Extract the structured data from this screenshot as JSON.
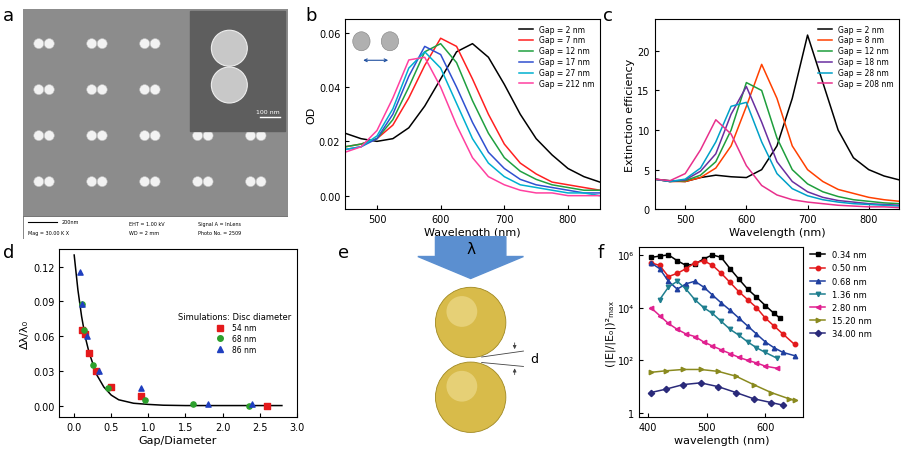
{
  "chart_data": [
    {
      "panel": "b",
      "type": "line",
      "x_label": "Wavelength (nm)",
      "y_label": "OD",
      "x": [
        450,
        475,
        500,
        525,
        550,
        575,
        600,
        625,
        650,
        675,
        700,
        725,
        750,
        775,
        800,
        825,
        850
      ],
      "series": [
        {
          "name": "Gap = 2 nm",
          "color": "#000000",
          "values": [
            0.023,
            0.021,
            0.02,
            0.021,
            0.025,
            0.033,
            0.043,
            0.053,
            0.056,
            0.051,
            0.041,
            0.03,
            0.021,
            0.015,
            0.01,
            0.007,
            0.005
          ]
        },
        {
          "name": "Gap = 7 nm",
          "color": "#ff2020",
          "values": [
            0.018,
            0.019,
            0.021,
            0.026,
            0.036,
            0.048,
            0.058,
            0.055,
            0.043,
            0.03,
            0.019,
            0.012,
            0.008,
            0.005,
            0.004,
            0.003,
            0.002
          ]
        },
        {
          "name": "Gap = 12 nm",
          "color": "#20a040",
          "values": [
            0.018,
            0.019,
            0.021,
            0.028,
            0.04,
            0.053,
            0.056,
            0.049,
            0.035,
            0.023,
            0.014,
            0.009,
            0.006,
            0.004,
            0.003,
            0.002,
            0.002
          ]
        },
        {
          "name": "Gap = 17 nm",
          "color": "#3050d0",
          "values": [
            0.017,
            0.018,
            0.021,
            0.03,
            0.044,
            0.055,
            0.052,
            0.04,
            0.027,
            0.016,
            0.01,
            0.006,
            0.004,
            0.003,
            0.002,
            0.001,
            0.001
          ]
        },
        {
          "name": "Gap = 27 nm",
          "color": "#00b0d0",
          "values": [
            0.017,
            0.018,
            0.022,
            0.032,
            0.047,
            0.053,
            0.047,
            0.034,
            0.021,
            0.012,
            0.007,
            0.004,
            0.003,
            0.002,
            0.001,
            0.001,
            0.0
          ]
        },
        {
          "name": "Gap = 212 nm",
          "color": "#ff40a0",
          "values": [
            0.016,
            0.018,
            0.024,
            0.036,
            0.05,
            0.051,
            0.04,
            0.026,
            0.014,
            0.007,
            0.004,
            0.002,
            0.001,
            0.001,
            0.0,
            0.0,
            0.0
          ]
        }
      ],
      "xlim": [
        450,
        850
      ],
      "xticks": [
        500,
        600,
        700,
        800
      ],
      "ylim": [
        -0.005,
        0.065
      ],
      "yticks": [
        {
          "value": 0,
          "label": "0.00"
        },
        0.02,
        0.04,
        0.06
      ],
      "legend": "upper right"
    },
    {
      "panel": "c",
      "type": "line",
      "x_label": "Wavelength (nm)",
      "y_label": "Extinction efficiency",
      "x": [
        450,
        475,
        500,
        525,
        550,
        575,
        600,
        625,
        650,
        675,
        700,
        725,
        750,
        775,
        800,
        825,
        850
      ],
      "series": [
        {
          "name": "Gap = 2 nm",
          "color": "#000000",
          "values": [
            3.8,
            3.6,
            3.5,
            4.0,
            4.3,
            4.1,
            4.0,
            5.0,
            8.0,
            14.0,
            22.0,
            16.0,
            10.0,
            6.5,
            5.0,
            4.2,
            3.7
          ]
        },
        {
          "name": "Gap = 8 nm",
          "color": "#ff4000",
          "values": [
            3.8,
            3.5,
            3.5,
            4.0,
            5.2,
            8.0,
            13.0,
            18.3,
            14.0,
            8.0,
            5.0,
            3.5,
            2.5,
            2.0,
            1.5,
            1.2,
            1.0
          ]
        },
        {
          "name": "Gap = 12 nm",
          "color": "#1e9e3c",
          "values": [
            3.8,
            3.5,
            3.6,
            4.3,
            6.0,
            10.0,
            16.0,
            15.0,
            9.0,
            5.0,
            3.2,
            2.2,
            1.6,
            1.2,
            1.0,
            0.8,
            0.7
          ]
        },
        {
          "name": "Gap = 18 nm",
          "color": "#6a2fa0",
          "values": [
            3.8,
            3.5,
            3.7,
            4.8,
            7.0,
            12.0,
            15.5,
            11.0,
            6.0,
            3.5,
            2.2,
            1.5,
            1.1,
            0.9,
            0.7,
            0.6,
            0.5
          ]
        },
        {
          "name": "Gap = 28 nm",
          "color": "#00a0c8",
          "values": [
            3.8,
            3.5,
            3.8,
            5.2,
            8.5,
            13.0,
            13.5,
            8.5,
            4.5,
            2.6,
            1.7,
            1.2,
            0.9,
            0.7,
            0.6,
            0.5,
            0.4
          ]
        },
        {
          "name": "Gap = 208 nm",
          "color": "#e8308c",
          "values": [
            3.8,
            3.6,
            4.5,
            7.5,
            11.3,
            9.5,
            5.5,
            3.0,
            1.8,
            1.2,
            0.9,
            0.7,
            0.5,
            0.4,
            0.3,
            0.3,
            0.2
          ]
        }
      ],
      "xlim": [
        450,
        850
      ],
      "xticks": [
        500,
        600,
        700,
        800
      ],
      "ylim": [
        0,
        24
      ],
      "yticks": [
        0,
        5,
        10,
        15,
        20
      ],
      "legend": "upper right"
    },
    {
      "panel": "d",
      "type": "scatter",
      "x_label": "Gap/Diameter",
      "y_label": "Δλ/λ₀",
      "legend_title": "Simulations: Disc diameter",
      "series": [
        {
          "name": "54 nm",
          "color": "#e41a1c",
          "marker": "square",
          "x": [
            0.1,
            0.15,
            0.2,
            0.3,
            0.5,
            0.9,
            2.6
          ],
          "values": [
            0.065,
            0.062,
            0.045,
            0.03,
            0.016,
            0.008,
            0.0
          ]
        },
        {
          "name": "68 nm",
          "color": "#2ca02c",
          "marker": "circle",
          "x": [
            0.1,
            0.13,
            0.25,
            0.45,
            0.95,
            1.6,
            2.35
          ],
          "values": [
            0.088,
            0.065,
            0.035,
            0.015,
            0.005,
            0.001,
            0.0
          ]
        },
        {
          "name": "86 nm",
          "color": "#1f3fbf",
          "marker": "triangle_up",
          "x": [
            0.08,
            0.11,
            0.17,
            0.33,
            0.9,
            1.8,
            2.4
          ],
          "values": [
            0.115,
            0.088,
            0.06,
            0.03,
            0.015,
            0.001,
            0.001
          ]
        },
        {
          "type": "line",
          "color": "#000000",
          "line_style": "solid",
          "x": [
            0.0,
            0.05,
            0.1,
            0.15,
            0.2,
            0.3,
            0.4,
            0.5,
            0.6,
            0.8,
            1.0,
            1.2,
            1.5,
            2.0,
            2.5,
            2.8
          ],
          "values": [
            0.13,
            0.1,
            0.077,
            0.059,
            0.046,
            0.027,
            0.016,
            0.009,
            0.005,
            0.002,
            0.001,
            0.0003,
            0,
            0,
            0,
            0
          ]
        }
      ],
      "xlim": [
        -0.2,
        3.0
      ],
      "xticks": [
        {
          "value": 0,
          "label": "0.0"
        },
        0.5,
        {
          "value": 1,
          "label": "1.0"
        },
        1.5,
        {
          "value": 2,
          "label": "2.0"
        },
        2.5,
        {
          "value": 3,
          "label": "3.0"
        }
      ],
      "ylim": [
        -0.01,
        0.135
      ],
      "yticks": [
        {
          "value": 0,
          "label": "0.00"
        },
        0.03,
        0.06,
        0.09,
        0.12
      ],
      "legend": "center right"
    },
    {
      "panel": "f",
      "type": "line",
      "x_label": "wavelength (nm)",
      "y_label": "(|E|/|Eₒ|)²ₘₐₓ",
      "log": "y",
      "series": [
        {
          "name": "0.34 nm",
          "color": "#000000",
          "marker": "square",
          "line_style": "solid",
          "x": [
            405,
            420,
            435,
            450,
            465,
            480,
            495,
            510,
            525,
            540,
            555,
            570,
            585,
            600,
            615,
            625
          ],
          "values": [
            800000,
            900000,
            1000000,
            600000,
            400000,
            450000,
            700000,
            1000000,
            800000,
            300000,
            120000,
            50000,
            25000,
            12000,
            6000,
            4000
          ]
        },
        {
          "name": "0.50 nm",
          "color": "#e31a1c",
          "marker": "circle",
          "line_style": "solid",
          "x": [
            405,
            420,
            435,
            450,
            465,
            480,
            495,
            510,
            525,
            540,
            555,
            570,
            585,
            600,
            615,
            630,
            650
          ],
          "values": [
            500000,
            400000,
            150000,
            200000,
            300000,
            500000,
            600000,
            400000,
            200000,
            90000,
            40000,
            20000,
            10000,
            4000,
            2000,
            1000,
            400
          ]
        },
        {
          "name": "0.68 nm",
          "color": "#1f3f9f",
          "marker": "triangle_up",
          "line_style": "solid",
          "x": [
            405,
            420,
            435,
            450,
            465,
            480,
            495,
            510,
            525,
            540,
            555,
            570,
            585,
            600,
            615,
            630,
            650
          ],
          "values": [
            500000,
            300000,
            100000,
            50000,
            80000,
            100000,
            60000,
            30000,
            15000,
            8000,
            4000,
            2000,
            1000,
            500,
            300,
            200,
            150
          ]
        },
        {
          "name": "1.36 nm",
          "color": "#1f7f8f",
          "marker": "triangle_down",
          "line_style": "solid",
          "x": [
            420,
            435,
            450,
            465,
            480,
            495,
            510,
            525,
            540,
            555,
            570,
            585,
            600,
            620
          ],
          "values": [
            20000,
            60000,
            100000,
            50000,
            20000,
            10000,
            6000,
            3000,
            1500,
            900,
            500,
            300,
            200,
            120
          ]
        },
        {
          "name": "2.80 nm",
          "color": "#e0208f",
          "marker": "triangle_left",
          "line_style": "solid",
          "x": [
            405,
            420,
            435,
            450,
            465,
            480,
            495,
            510,
            525,
            540,
            555,
            570,
            585,
            600,
            620
          ],
          "values": [
            10000,
            5000,
            2500,
            1500,
            1000,
            800,
            500,
            350,
            250,
            180,
            130,
            100,
            80,
            60,
            50
          ]
        },
        {
          "name": "15.20 nm",
          "color": "#8a8a1f",
          "marker": "triangle_right",
          "line_style": "solid",
          "x": [
            405,
            430,
            460,
            490,
            520,
            550,
            580,
            610,
            640,
            650
          ],
          "values": [
            35,
            40,
            45,
            45,
            38,
            25,
            12,
            6,
            3.5,
            3
          ]
        },
        {
          "name": "34.00 nm",
          "color": "#2a2a7a",
          "marker": "diamond",
          "line_style": "solid",
          "x": [
            405,
            430,
            460,
            490,
            520,
            550,
            580,
            610,
            630
          ],
          "values": [
            6,
            8,
            12,
            14,
            10,
            6,
            3.5,
            2.5,
            2
          ]
        }
      ],
      "xlim": [
        385,
        665
      ],
      "xticks": [
        400,
        500,
        600
      ],
      "ylim": [
        0.7,
        2000000
      ],
      "yticks": [
        1,
        {
          "value": 100,
          "label": "10²"
        },
        {
          "value": 10000,
          "label": "10⁴"
        },
        {
          "value": 1000000,
          "label": "10⁶"
        }
      ],
      "legend": "right"
    }
  ],
  "panel_a": {
    "panel": "a",
    "scale_bar": "200nm",
    "inset_scale_bar": "100 nm",
    "info": [
      "Mag = 30.00 K X",
      "EHT = 1.00 kV",
      "WD = 2 mm",
      "Signal A = InLens",
      "Photo No. = 2509"
    ]
  },
  "panel_e": {
    "panel": "e",
    "incident_label": "λ",
    "gap_label": "d"
  }
}
